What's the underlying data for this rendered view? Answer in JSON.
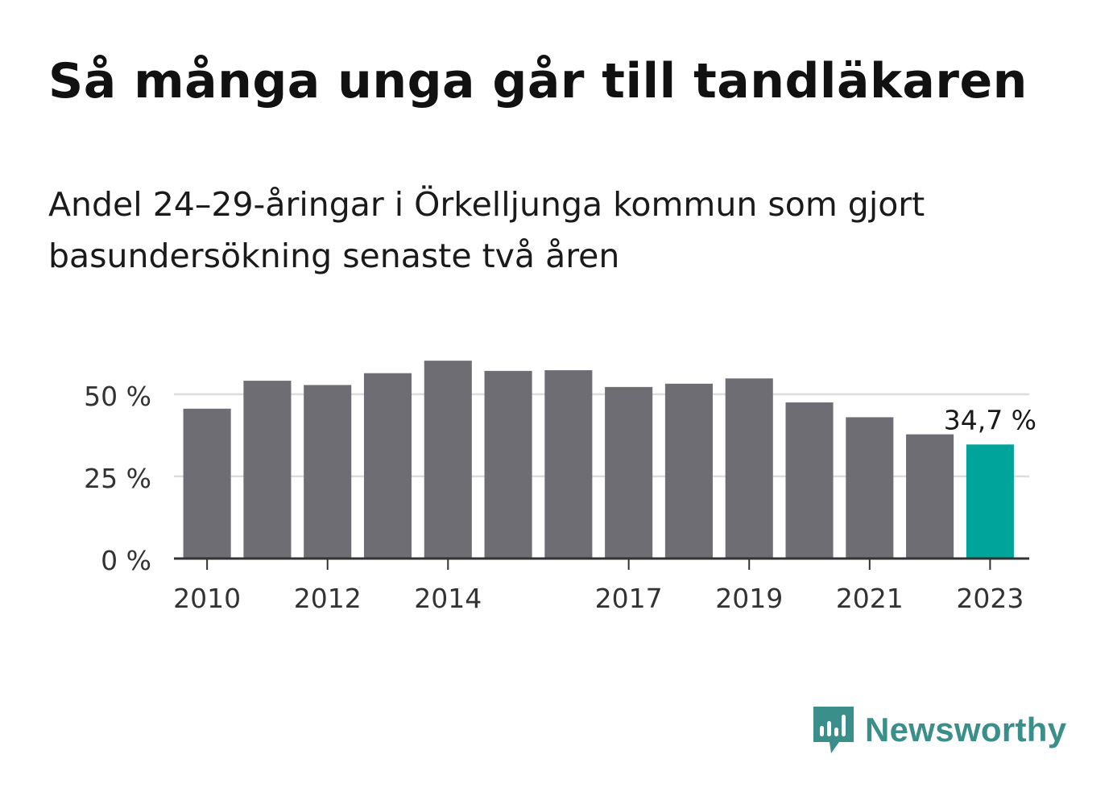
{
  "header": {
    "title": "Så många unga går till tandläkaren",
    "subtitle": "Andel 24–29-åringar i Örkelljunga kommun som gjort basundersökning senaste två åren"
  },
  "brand": {
    "name": "Newsworthy",
    "color": "#3a8f8a"
  },
  "colors": {
    "bar": "#6e6d73",
    "highlight": "#00a49a",
    "grid": "#dddddd",
    "axis": "#333333"
  },
  "chart_data": {
    "type": "bar",
    "x": [
      2010,
      2011,
      2012,
      2013,
      2014,
      2015,
      2016,
      2017,
      2018,
      2019,
      2020,
      2021,
      2022,
      2023
    ],
    "values": [
      45.6,
      54.1,
      52.8,
      56.4,
      60.2,
      57.1,
      57.3,
      52.2,
      53.2,
      54.8,
      47.5,
      43.0,
      37.8,
      34.7
    ],
    "xtick_labels": [
      "2010",
      "2012",
      "2014",
      "2017",
      "2019",
      "2021",
      "2023"
    ],
    "xtick_values": [
      2010,
      2012,
      2014,
      2017,
      2019,
      2021,
      2023
    ],
    "yticks": [
      0,
      25,
      50
    ],
    "ytick_labels": [
      "0 %",
      "25 %",
      "50 %"
    ],
    "ylim": [
      0,
      60
    ],
    "highlight_index": 13,
    "annotation": "34,7 %",
    "grid": true
  }
}
